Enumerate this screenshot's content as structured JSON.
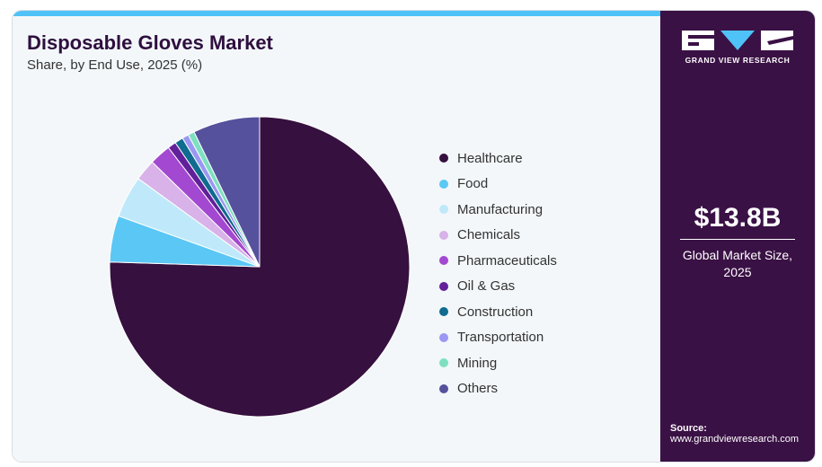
{
  "header": {
    "title": "Disposable Gloves Market",
    "subtitle": "Share, by End Use, 2025 (%)"
  },
  "chart_data": {
    "type": "pie",
    "title": "Disposable Gloves Market",
    "subtitle": "Share, by End Use, 2025 (%)",
    "start_angle_deg": 0,
    "direction": "clockwise",
    "legend_position": "right",
    "slices": [
      {
        "label": "Healthcare",
        "value": 75.5,
        "color": "#36103f"
      },
      {
        "label": "Food",
        "value": 5.0,
        "color": "#5bc7f5"
      },
      {
        "label": "Manufacturing",
        "value": 4.5,
        "color": "#bfe9fa"
      },
      {
        "label": "Chemicals",
        "value": 2.3,
        "color": "#d8b2e8"
      },
      {
        "label": "Pharmaceuticals",
        "value": 2.3,
        "color": "#a348d0"
      },
      {
        "label": "Oil & Gas",
        "value": 0.9,
        "color": "#62209a"
      },
      {
        "label": "Construction",
        "value": 0.9,
        "color": "#0f6b8f"
      },
      {
        "label": "Transportation",
        "value": 0.7,
        "color": "#9a98f2"
      },
      {
        "label": "Mining",
        "value": 0.7,
        "color": "#7ee0c0"
      },
      {
        "label": "Others",
        "value": 7.2,
        "color": "#55519c"
      }
    ]
  },
  "sidebar": {
    "brand_name": "GRAND VIEW RESEARCH",
    "market_value": "$13.8B",
    "market_label_line1": "Global Market Size,",
    "market_label_line2": "2025",
    "source_title": "Source:",
    "source_url": "www.grandviewresearch.com"
  },
  "colors": {
    "sidebar_bg": "#3a1145",
    "accent": "#4fc3f7",
    "panel_bg": "#f3f7fa",
    "title": "#2e0f3e"
  }
}
